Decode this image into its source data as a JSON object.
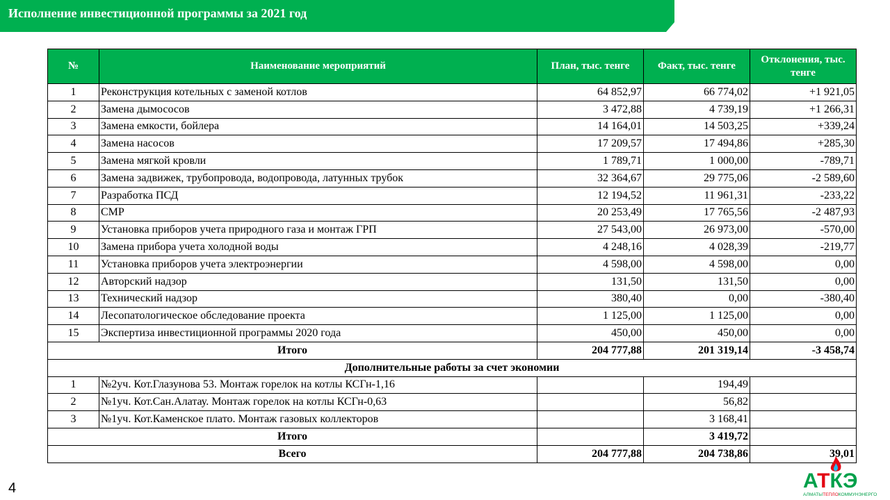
{
  "title": "Исполнение инвестиционной  программы за 2021 год",
  "headers": [
    "№",
    "Наименование мероприятий",
    "План, тыс. тенге",
    "Факт, тыс. тенге",
    "Отклонения, тыс. тенге"
  ],
  "rows": [
    [
      "1",
      "Реконструкция котельных с заменой котлов",
      "64 852,97",
      "66 774,02",
      "+1 921,05"
    ],
    [
      "2",
      "Замена дымососов",
      "3 472,88",
      "4 739,19",
      "+1 266,31"
    ],
    [
      "3",
      "Замена емкости, бойлера",
      "14 164,01",
      "14 503,25",
      "+339,24"
    ],
    [
      "4",
      "Замена насосов",
      "17 209,57",
      "17 494,86",
      "+285,30"
    ],
    [
      "5",
      "Замена мягкой кровли",
      "1 789,71",
      "1 000,00",
      "-789,71"
    ],
    [
      "6",
      "Замена задвижек, трубопровода, водопровода, латунных трубок",
      "32 364,67",
      "29 775,06",
      "-2 589,60"
    ],
    [
      "7",
      "Разработка ПСД",
      "12 194,52",
      "11 961,31",
      "-233,22"
    ],
    [
      "8",
      "СМР",
      "20 253,49",
      "17 765,56",
      "-2 487,93"
    ],
    [
      "9",
      "Установка приборов учета природного газа и монтаж ГРП",
      "27 543,00",
      "26 973,00",
      "-570,00"
    ],
    [
      "10",
      "Замена прибора учета холодной воды",
      "4 248,16",
      "4 028,39",
      "-219,77"
    ],
    [
      "11",
      "Установка приборов учета электроэнергии",
      "4 598,00",
      "4 598,00",
      "0,00"
    ],
    [
      "12",
      "Авторский надзор",
      "131,50",
      "131,50",
      "0,00"
    ],
    [
      "13",
      "Технический надзор",
      "380,40",
      "0,00",
      "-380,40"
    ],
    [
      "14",
      "Лесопатологическое обследование проекта",
      "1 125,00",
      "1 125,00",
      "0,00"
    ],
    [
      "15",
      "Экспертиза инвестиционной программы  2020 года",
      "450,00",
      "450,00",
      "0,00"
    ]
  ],
  "total1": [
    "Итого",
    "204 777,88",
    "201 319,14",
    "-3 458,74"
  ],
  "section": "Дополнительные работы за счет экономии",
  "extra_rows": [
    [
      "1",
      "№2уч. Кот.Глазунова 53. Монтаж горелок на котлы КСГн-1,16",
      "",
      "194,49",
      ""
    ],
    [
      "2",
      "№1уч. Кот.Сан.Алатау. Монтаж горелок на котлы КСГн-0,63",
      "",
      "56,82",
      ""
    ],
    [
      "3",
      "№1уч. Кот.Каменское плато. Монтаж газовых коллекторов",
      "",
      "3 168,41",
      ""
    ]
  ],
  "total2": [
    "Итого",
    "",
    "3 419,72",
    ""
  ],
  "grand": [
    "Всего",
    "204 777,88",
    "204 738,86",
    "39,01"
  ],
  "page_number": "4",
  "logo": {
    "text": "АТКЭ",
    "subtitle": "АЛМАТЫТЕПЛОКОММУНЭНЕРГО"
  },
  "colors": {
    "accent": "#00B050",
    "logo_red": "#E30613"
  }
}
